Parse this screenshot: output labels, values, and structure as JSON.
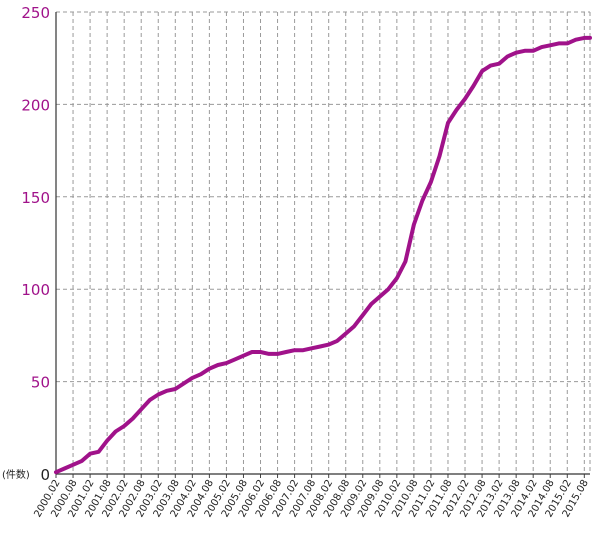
{
  "chart_data": {
    "type": "line",
    "unit_label": "(件数)",
    "ylim": [
      0,
      250
    ],
    "y_ticks": [
      0,
      50,
      100,
      150,
      200,
      250
    ],
    "grid": true,
    "x_tick_labels": [
      "2000.02",
      "2000.08",
      "2001.02",
      "2001.08",
      "2002.02",
      "2002.08",
      "2003.02",
      "2003.08",
      "2004.02",
      "2004.08",
      "2005.02",
      "2005.08",
      "2006.02",
      "2006.08",
      "2007.02",
      "2007.08",
      "2008.02",
      "2008.08",
      "2009.02",
      "2009.08",
      "2010.02",
      "2010.08",
      "2011.02",
      "2011.08",
      "2012.02",
      "2012.08",
      "2013.02",
      "2013.08",
      "2014.02",
      "2014.08",
      "2015.02",
      "2015.08"
    ],
    "series": [
      {
        "color": "#a0128a",
        "x": [
          "2000.02",
          "2000.05",
          "2000.08",
          "2000.11",
          "2001.02",
          "2001.05",
          "2001.08",
          "2001.11",
          "2002.02",
          "2002.05",
          "2002.08",
          "2002.11",
          "2003.02",
          "2003.05",
          "2003.08",
          "2003.11",
          "2004.02",
          "2004.05",
          "2004.08",
          "2004.11",
          "2005.02",
          "2005.05",
          "2005.08",
          "2005.11",
          "2006.02",
          "2006.05",
          "2006.08",
          "2006.11",
          "2007.02",
          "2007.05",
          "2007.08",
          "2007.11",
          "2008.02",
          "2008.05",
          "2008.08",
          "2008.11",
          "2009.02",
          "2009.05",
          "2009.08",
          "2009.11",
          "2010.02",
          "2010.05",
          "2010.08",
          "2010.11",
          "2011.02",
          "2011.05",
          "2011.08",
          "2011.11",
          "2012.02",
          "2012.05",
          "2012.08",
          "2012.11",
          "2013.02",
          "2013.05",
          "2013.08",
          "2013.11",
          "2014.02",
          "2014.05",
          "2014.08",
          "2014.11",
          "2015.02",
          "2015.05",
          "2015.08",
          "2015.10"
        ],
        "values": [
          1,
          3,
          5,
          7,
          11,
          12,
          18,
          23,
          26,
          30,
          35,
          40,
          43,
          45,
          46,
          49,
          52,
          54,
          57,
          59,
          60,
          62,
          64,
          66,
          66,
          65,
          65,
          66,
          67,
          67,
          68,
          69,
          70,
          72,
          76,
          80,
          86,
          92,
          96,
          100,
          106,
          115,
          135,
          148,
          158,
          172,
          190,
          197,
          203,
          210,
          218,
          221,
          222,
          226,
          228,
          229,
          229,
          231,
          232,
          233,
          233,
          235,
          236,
          236
        ]
      }
    ]
  }
}
